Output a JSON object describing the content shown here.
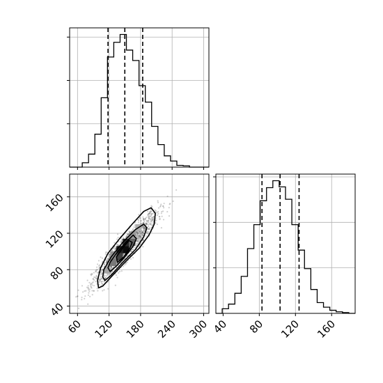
{
  "chart_data": [
    {
      "type": "histogram",
      "panel": "top-left",
      "variable": "x",
      "xlim": [
        45,
        310
      ],
      "bins": [
        [
          45,
          57,
          0
        ],
        [
          57,
          69,
          0
        ],
        [
          69,
          81,
          0.5
        ],
        [
          81,
          93,
          1.5
        ],
        [
          93,
          105,
          3.8
        ],
        [
          105,
          117,
          8.0
        ],
        [
          117,
          129,
          12.7
        ],
        [
          129,
          141,
          14.4
        ],
        [
          141,
          153,
          15.3
        ],
        [
          153,
          165,
          13.5
        ],
        [
          165,
          177,
          12.3
        ],
        [
          177,
          189,
          9.4
        ],
        [
          189,
          201,
          7.5
        ],
        [
          201,
          213,
          4.7
        ],
        [
          213,
          225,
          2.6
        ],
        [
          225,
          237,
          1.3
        ],
        [
          237,
          249,
          0.7
        ],
        [
          249,
          261,
          0.2
        ],
        [
          261,
          273,
          0.15
        ],
        [
          273,
          285,
          0
        ],
        [
          285,
          297,
          0
        ],
        [
          297,
          310,
          0
        ]
      ],
      "quantiles": [
        118,
        150,
        184
      ],
      "grid": true
    },
    {
      "type": "scatter_contour",
      "panel": "bottom-left",
      "xlim": [
        45,
        310
      ],
      "ylim": [
        32,
        185
      ],
      "xticks": [
        "60",
        "120",
        "180",
        "240",
        "300"
      ],
      "yticks": [
        "40",
        "80",
        "120",
        "160"
      ],
      "xtick_values": [
        60,
        120,
        180,
        240,
        300
      ],
      "ytick_values": [
        40,
        80,
        120,
        160
      ],
      "correlation_axis": {
        "x_mean": 150,
        "y_mean": 103,
        "x_sd": 31,
        "y_sd": 20,
        "rho": 0.93
      },
      "density_cells": [
        {
          "x": 128,
          "y": 88,
          "level": 0.45
        },
        {
          "x": 140,
          "y": 94,
          "level": 0.7
        },
        {
          "x": 140,
          "y": 102,
          "level": 0.85
        },
        {
          "x": 152,
          "y": 102,
          "level": 0.95
        },
        {
          "x": 152,
          "y": 110,
          "level": 0.8
        },
        {
          "x": 164,
          "y": 110,
          "level": 0.55
        },
        {
          "x": 128,
          "y": 96,
          "level": 0.35
        },
        {
          "x": 164,
          "y": 118,
          "level": 0.3
        },
        {
          "x": 116,
          "y": 80,
          "level": 0.25
        },
        {
          "x": 176,
          "y": 126,
          "level": 0.2
        }
      ],
      "contours": [
        [
          [
            100,
            60
          ],
          [
            108,
            62
          ],
          [
            124,
            72
          ],
          [
            150,
            88
          ],
          [
            178,
            104
          ],
          [
            196,
            118
          ],
          [
            206,
            130
          ],
          [
            208,
            142
          ],
          [
            200,
            148
          ],
          [
            186,
            144
          ],
          [
            164,
            130
          ],
          [
            140,
            114
          ],
          [
            118,
            98
          ],
          [
            104,
            82
          ],
          [
            98,
            68
          ]
        ],
        [
          [
            112,
            68
          ],
          [
            124,
            74
          ],
          [
            146,
            88
          ],
          [
            170,
            102
          ],
          [
            186,
            116
          ],
          [
            192,
            126
          ],
          [
            186,
            130
          ],
          [
            170,
            124
          ],
          [
            146,
            110
          ],
          [
            124,
            94
          ],
          [
            110,
            80
          ],
          [
            108,
            72
          ]
        ],
        [
          [
            122,
            78
          ],
          [
            134,
            84
          ],
          [
            150,
            94
          ],
          [
            166,
            106
          ],
          [
            172,
            114
          ],
          [
            166,
            118
          ],
          [
            152,
            110
          ],
          [
            134,
            98
          ],
          [
            122,
            88
          ],
          [
            118,
            82
          ]
        ],
        [
          [
            136,
            88
          ],
          [
            148,
            94
          ],
          [
            160,
            104
          ],
          [
            164,
            110
          ],
          [
            158,
            112
          ],
          [
            146,
            104
          ],
          [
            134,
            94
          ]
        ]
      ],
      "grid": true
    },
    {
      "type": "histogram",
      "panel": "bottom-right",
      "variable": "y",
      "xlim": [
        32,
        186
      ],
      "xticks": [
        "40",
        "80",
        "120",
        "160"
      ],
      "xtick_values": [
        40,
        80,
        120,
        160
      ],
      "bins": [
        [
          32,
          39,
          0
        ],
        [
          39,
          46,
          0.6
        ],
        [
          46,
          53,
          1.2
        ],
        [
          53,
          60,
          2.6
        ],
        [
          60,
          67,
          4.8
        ],
        [
          67,
          74,
          8.4
        ],
        [
          74,
          81,
          11.5
        ],
        [
          81,
          88,
          14.6
        ],
        [
          88,
          95,
          16.3
        ],
        [
          95,
          102,
          17.2
        ],
        [
          102,
          109,
          16.4
        ],
        [
          109,
          116,
          14.8
        ],
        [
          116,
          123,
          11.5
        ],
        [
          123,
          130,
          8.2
        ],
        [
          130,
          137,
          5.8
        ],
        [
          137,
          144,
          3.1
        ],
        [
          144,
          151,
          1.4
        ],
        [
          151,
          158,
          0.8
        ],
        [
          158,
          165,
          0.4
        ],
        [
          165,
          172,
          0.2
        ],
        [
          172,
          179,
          0.1
        ],
        [
          179,
          186,
          0
        ]
      ],
      "quantiles": [
        83,
        103,
        124
      ],
      "grid": true
    }
  ]
}
